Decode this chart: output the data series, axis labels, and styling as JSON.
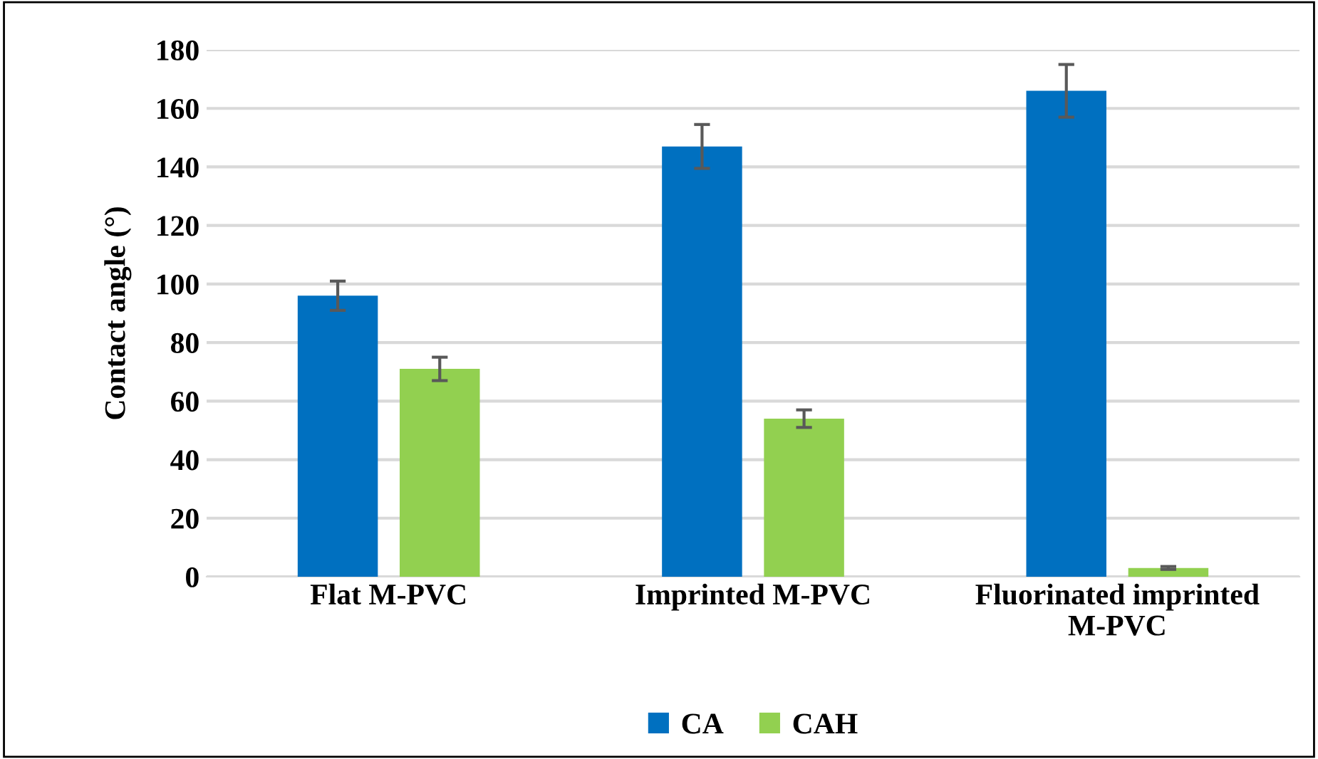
{
  "chart_data": {
    "type": "bar",
    "ylabel": "Contact angle (°)",
    "categories": [
      "Flat M-PVC",
      "Imprinted M-PVC",
      "Fluorinated imprinted\nM-PVC"
    ],
    "series": [
      {
        "name": "CA",
        "color": "#0070c0",
        "values": [
          96,
          147,
          166
        ],
        "errors": [
          5,
          7.5,
          9
        ]
      },
      {
        "name": "CAH",
        "color": "#92d050",
        "values": [
          71,
          54,
          3
        ],
        "errors": [
          4,
          3,
          0.5
        ]
      }
    ],
    "ylim": [
      0,
      180
    ],
    "yticks": [
      0,
      20,
      40,
      60,
      80,
      100,
      120,
      140,
      160,
      180
    ],
    "grid": "y",
    "legend": "bottom"
  }
}
